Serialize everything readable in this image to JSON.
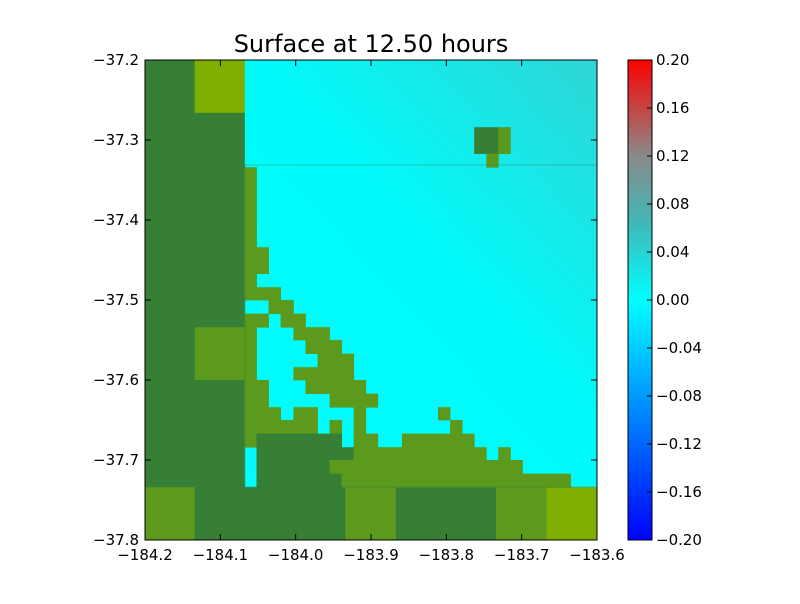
{
  "chart_data": {
    "type": "heatmap",
    "title": "Surface at 12.50 hours",
    "xlabel": "",
    "ylabel": "",
    "xlim": [
      -184.2,
      -183.6
    ],
    "ylim": [
      -37.8,
      -37.2
    ],
    "x_ticks": [
      -184.2,
      -184.1,
      -184.0,
      -183.9,
      -183.8,
      -183.7,
      -183.6
    ],
    "x_tick_labels": [
      "−184.2",
      "−184.1",
      "−184.0",
      "−183.9",
      "−183.8",
      "−183.7",
      "−183.6"
    ],
    "y_ticks": [
      -37.2,
      -37.3,
      -37.4,
      -37.5,
      -37.6,
      -37.7,
      -37.8
    ],
    "y_tick_labels": [
      "−37.2",
      "−37.3",
      "−37.4",
      "−37.5",
      "−37.6",
      "−37.7",
      "−37.8"
    ],
    "grid": false,
    "water_value_range": [
      0.0,
      0.03
    ],
    "land_colors": {
      "dark": "#367f35",
      "medium": "#5b9a1c",
      "light": "#7fad00"
    },
    "land_cells": {
      "coarse_level": [
        {
          "x0": -184.2,
          "x1": -184.134,
          "y0": -37.2,
          "y1": -37.266,
          "shade": "dark"
        },
        {
          "x0": -184.134,
          "x1": -184.068,
          "y0": -37.2,
          "y1": -37.266,
          "shade": "light"
        },
        {
          "x0": -184.2,
          "x1": -184.068,
          "y0": -37.266,
          "y1": -37.334,
          "shade": "dark"
        },
        {
          "x0": -184.2,
          "x1": -184.068,
          "y0": -37.334,
          "y1": -37.4,
          "shade": "dark"
        },
        {
          "x0": -184.2,
          "x1": -184.068,
          "y0": -37.4,
          "y1": -37.467,
          "shade": "dark"
        },
        {
          "x0": -184.2,
          "x1": -184.068,
          "y0": -37.467,
          "y1": -37.534,
          "shade": "dark"
        },
        {
          "x0": -184.2,
          "x1": -184.134,
          "y0": -37.534,
          "y1": -37.6,
          "shade": "dark"
        },
        {
          "x0": -184.134,
          "x1": -184.068,
          "y0": -37.534,
          "y1": -37.6,
          "shade": "medium"
        },
        {
          "x0": -184.2,
          "x1": -184.068,
          "y0": -37.6,
          "y1": -37.667,
          "shade": "dark"
        },
        {
          "x0": -184.2,
          "x1": -184.068,
          "y0": -37.667,
          "y1": -37.734,
          "shade": "dark"
        },
        {
          "x0": -184.2,
          "x1": -184.134,
          "y0": -37.734,
          "y1": -37.8,
          "shade": "medium"
        },
        {
          "x0": -184.134,
          "x1": -183.934,
          "y0": -37.734,
          "y1": -37.8,
          "shade": "dark"
        },
        {
          "x0": -183.934,
          "x1": -183.867,
          "y0": -37.734,
          "y1": -37.8,
          "shade": "medium"
        },
        {
          "x0": -183.867,
          "x1": -183.734,
          "y0": -37.734,
          "y1": -37.8,
          "shade": "dark"
        },
        {
          "x0": -183.734,
          "x1": -183.667,
          "y0": -37.734,
          "y1": -37.8,
          "shade": "medium"
        },
        {
          "x0": -183.667,
          "x1": -183.6,
          "y0": -37.734,
          "y1": -37.8,
          "shade": "light"
        }
      ],
      "fine_level": [
        {
          "x0": -184.068,
          "x1": -184.052,
          "y0": -37.334,
          "y1": -37.367,
          "shade": "medium"
        },
        {
          "x0": -184.068,
          "x1": -184.052,
          "y0": -37.367,
          "y1": -37.434,
          "shade": "medium"
        },
        {
          "x0": -184.068,
          "x1": -184.036,
          "y0": -37.434,
          "y1": -37.467,
          "shade": "medium"
        },
        {
          "x0": -184.068,
          "x1": -184.052,
          "y0": -37.467,
          "y1": -37.5,
          "shade": "medium"
        },
        {
          "x0": -184.052,
          "x1": -184.02,
          "y0": -37.484,
          "y1": -37.5,
          "shade": "medium"
        },
        {
          "x0": -184.036,
          "x1": -184.003,
          "y0": -37.5,
          "y1": -37.517,
          "shade": "medium"
        },
        {
          "x0": -184.068,
          "x1": -184.036,
          "y0": -37.517,
          "y1": -37.534,
          "shade": "medium"
        },
        {
          "x0": -184.02,
          "x1": -183.987,
          "y0": -37.517,
          "y1": -37.534,
          "shade": "medium"
        },
        {
          "x0": -184.068,
          "x1": -184.052,
          "y0": -37.534,
          "y1": -37.6,
          "shade": "medium"
        },
        {
          "x0": -184.003,
          "x1": -183.955,
          "y0": -37.534,
          "y1": -37.55,
          "shade": "medium"
        },
        {
          "x0": -183.987,
          "x1": -183.939,
          "y0": -37.55,
          "y1": -37.567,
          "shade": "medium"
        },
        {
          "x0": -183.971,
          "x1": -183.923,
          "y0": -37.567,
          "y1": -37.584,
          "shade": "medium"
        },
        {
          "x0": -184.003,
          "x1": -183.923,
          "y0": -37.584,
          "y1": -37.6,
          "shade": "medium"
        },
        {
          "x0": -184.068,
          "x1": -184.036,
          "y0": -37.6,
          "y1": -37.634,
          "shade": "medium"
        },
        {
          "x0": -183.987,
          "x1": -183.907,
          "y0": -37.6,
          "y1": -37.617,
          "shade": "medium"
        },
        {
          "x0": -183.955,
          "x1": -183.891,
          "y0": -37.617,
          "y1": -37.634,
          "shade": "medium"
        },
        {
          "x0": -184.068,
          "x1": -184.02,
          "y0": -37.634,
          "y1": -37.65,
          "shade": "medium"
        },
        {
          "x0": -184.003,
          "x1": -183.971,
          "y0": -37.634,
          "y1": -37.65,
          "shade": "medium"
        },
        {
          "x0": -183.923,
          "x1": -183.907,
          "y0": -37.634,
          "y1": -37.65,
          "shade": "medium"
        },
        {
          "x0": -183.811,
          "x1": -183.795,
          "y0": -37.634,
          "y1": -37.65,
          "shade": "medium"
        },
        {
          "x0": -184.068,
          "x1": -183.971,
          "y0": -37.65,
          "y1": -37.667,
          "shade": "medium"
        },
        {
          "x0": -183.955,
          "x1": -183.939,
          "y0": -37.65,
          "y1": -37.667,
          "shade": "medium"
        },
        {
          "x0": -183.923,
          "x1": -183.907,
          "y0": -37.65,
          "y1": -37.667,
          "shade": "medium"
        },
        {
          "x0": -183.795,
          "x1": -183.779,
          "y0": -37.65,
          "y1": -37.667,
          "shade": "medium"
        },
        {
          "x0": -184.068,
          "x1": -184.052,
          "y0": -37.667,
          "y1": -37.684,
          "shade": "medium"
        },
        {
          "x0": -184.052,
          "x1": -183.939,
          "y0": -37.667,
          "y1": -37.684,
          "shade": "dark"
        },
        {
          "x0": -183.923,
          "x1": -183.891,
          "y0": -37.667,
          "y1": -37.684,
          "shade": "medium"
        },
        {
          "x0": -183.859,
          "x1": -183.763,
          "y0": -37.667,
          "y1": -37.684,
          "shade": "medium"
        },
        {
          "x0": -184.052,
          "x1": -183.923,
          "y0": -37.684,
          "y1": -37.7,
          "shade": "dark"
        },
        {
          "x0": -183.923,
          "x1": -183.747,
          "y0": -37.684,
          "y1": -37.7,
          "shade": "medium"
        },
        {
          "x0": -183.731,
          "x1": -183.715,
          "y0": -37.684,
          "y1": -37.7,
          "shade": "medium"
        },
        {
          "x0": -184.052,
          "x1": -183.955,
          "y0": -37.7,
          "y1": -37.717,
          "shade": "dark"
        },
        {
          "x0": -183.955,
          "x1": -183.699,
          "y0": -37.7,
          "y1": -37.717,
          "shade": "medium"
        },
        {
          "x0": -184.052,
          "x1": -183.939,
          "y0": -37.717,
          "y1": -37.734,
          "shade": "dark"
        },
        {
          "x0": -183.939,
          "x1": -183.635,
          "y0": -37.717,
          "y1": -37.734,
          "shade": "medium"
        },
        {
          "x0": -183.763,
          "x1": -183.731,
          "y0": -37.284,
          "y1": -37.317,
          "shade": "dark"
        },
        {
          "x0": -183.731,
          "x1": -183.715,
          "y0": -37.284,
          "y1": -37.317,
          "shade": "medium"
        },
        {
          "x0": -183.747,
          "x1": -183.731,
          "y0": -37.317,
          "y1": -37.334,
          "shade": "medium"
        }
      ]
    },
    "colorbar": {
      "vmin": -0.2,
      "vmax": 0.2,
      "ticks": [
        0.2,
        0.16,
        0.12,
        0.08,
        0.04,
        0.0,
        -0.04,
        -0.08,
        -0.12,
        -0.16,
        -0.2
      ],
      "tick_labels": [
        "0.20",
        "0.16",
        "0.12",
        "0.08",
        "0.04",
        "0.00",
        "−0.04",
        "−0.08",
        "−0.12",
        "−0.16",
        "−0.20"
      ],
      "colors": [
        "#0000ff",
        "#0080ff",
        "#00ffff",
        "#40b8b8",
        "#8a8a8a",
        "#ff0000"
      ]
    }
  }
}
